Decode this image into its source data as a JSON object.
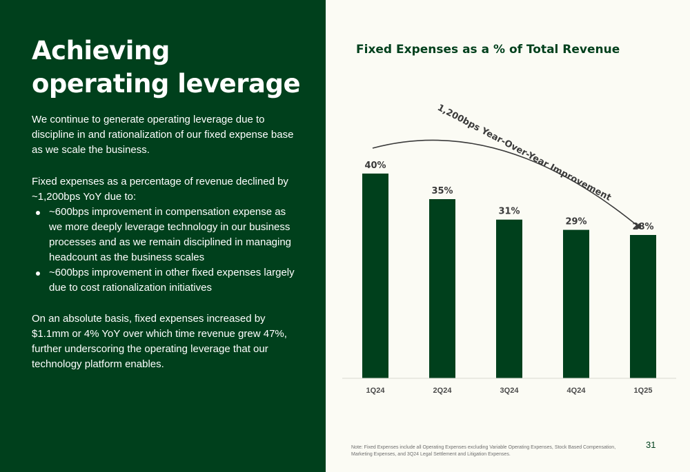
{
  "slide": {
    "title": "Achieving operating leverage",
    "intro": "We continue to generate operating leverage due to discipline in and rationalization of our fixed expense base as we scale the business.",
    "decline_text": "Fixed expenses as a percentage of revenue declined by ~1,200bps YoY due to:",
    "bullets": [
      "~600bps improvement in compensation expense as we more deeply leverage technology in our business processes and as we remain disciplined in managing headcount as the business scales",
      "~600bps improvement in other fixed expenses largely due to cost rationalization initiatives"
    ],
    "absolute_text": "On an absolute basis, fixed expenses increased by $1.1mm or 4% YoY over which time revenue grew 47%, further underscoring the operating leverage that our technology platform enables.",
    "note": "Note: Fixed Expenses include all Operating Expenses excluding Variable Operating Expenses, Stock Based Compensation, Marketing Expenses, and 3Q24 Legal Settlement and Litigation Expenses.",
    "page_number": "31"
  },
  "colors": {
    "panel_green": "#00401c",
    "bar_green": "#00401c",
    "background": "#fbfbf4"
  },
  "chart_data": {
    "type": "bar",
    "title": "Fixed Expenses as a % of Total Revenue",
    "categories": [
      "1Q24",
      "2Q24",
      "3Q24",
      "4Q24",
      "1Q25"
    ],
    "values": [
      40,
      35,
      31,
      29,
      28
    ],
    "value_labels": [
      "40%",
      "35%",
      "31%",
      "29%",
      "28%"
    ],
    "ylim": [
      0,
      42
    ],
    "annotation": "1,200bps Year-Over-Year Improvement",
    "grid": false
  }
}
